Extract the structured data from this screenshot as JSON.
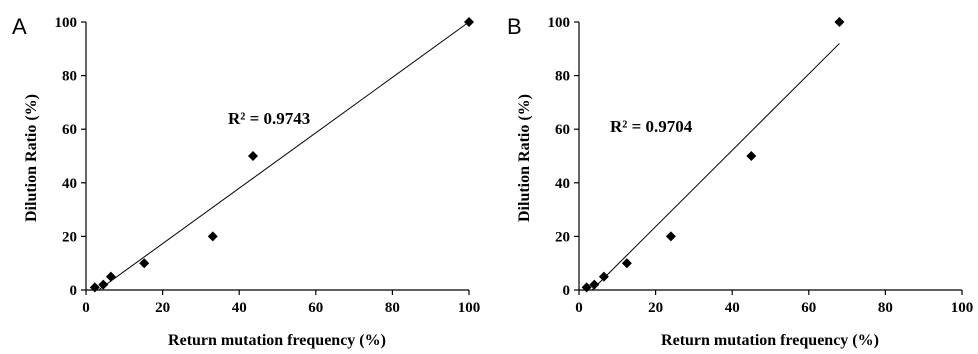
{
  "chart_data": [
    {
      "type": "scatter",
      "panel_label": "A",
      "xlabel": "Return mutation frequency (%)",
      "ylabel": "Dilution Ratio (%)",
      "xlim": [
        0,
        100
      ],
      "ylim": [
        0,
        100
      ],
      "xticks": [
        0,
        20,
        40,
        60,
        80,
        100
      ],
      "yticks": [
        0,
        20,
        40,
        60,
        80,
        100
      ],
      "points": [
        {
          "x": 2.3,
          "y": 1
        },
        {
          "x": 4.5,
          "y": 2
        },
        {
          "x": 6.5,
          "y": 5
        },
        {
          "x": 15.2,
          "y": 10
        },
        {
          "x": 33.1,
          "y": 20
        },
        {
          "x": 43.6,
          "y": 50
        },
        {
          "x": 100,
          "y": 100
        }
      ],
      "trendline": {
        "x": [
          2.3,
          100
        ],
        "y": [
          -1,
          100
        ]
      },
      "annotation": "R² = 0.9743"
    },
    {
      "type": "scatter",
      "panel_label": "B",
      "xlabel": "Return mutation frequency (%)",
      "ylabel": "Dilution Ratio (%)",
      "xlim": [
        0,
        100
      ],
      "ylim": [
        0,
        100
      ],
      "xticks": [
        0,
        20,
        40,
        60,
        80,
        100
      ],
      "yticks": [
        0,
        20,
        40,
        60,
        80,
        100
      ],
      "points": [
        {
          "x": 2,
          "y": 1
        },
        {
          "x": 4,
          "y": 2
        },
        {
          "x": 6.5,
          "y": 5
        },
        {
          "x": 12.5,
          "y": 10
        },
        {
          "x": 24,
          "y": 20
        },
        {
          "x": 45,
          "y": 50
        },
        {
          "x": 68,
          "y": 100
        }
      ],
      "trendline": {
        "x": [
          2,
          68
        ],
        "y": [
          -2,
          92
        ]
      },
      "annotation": "R² = 0.9704"
    }
  ]
}
